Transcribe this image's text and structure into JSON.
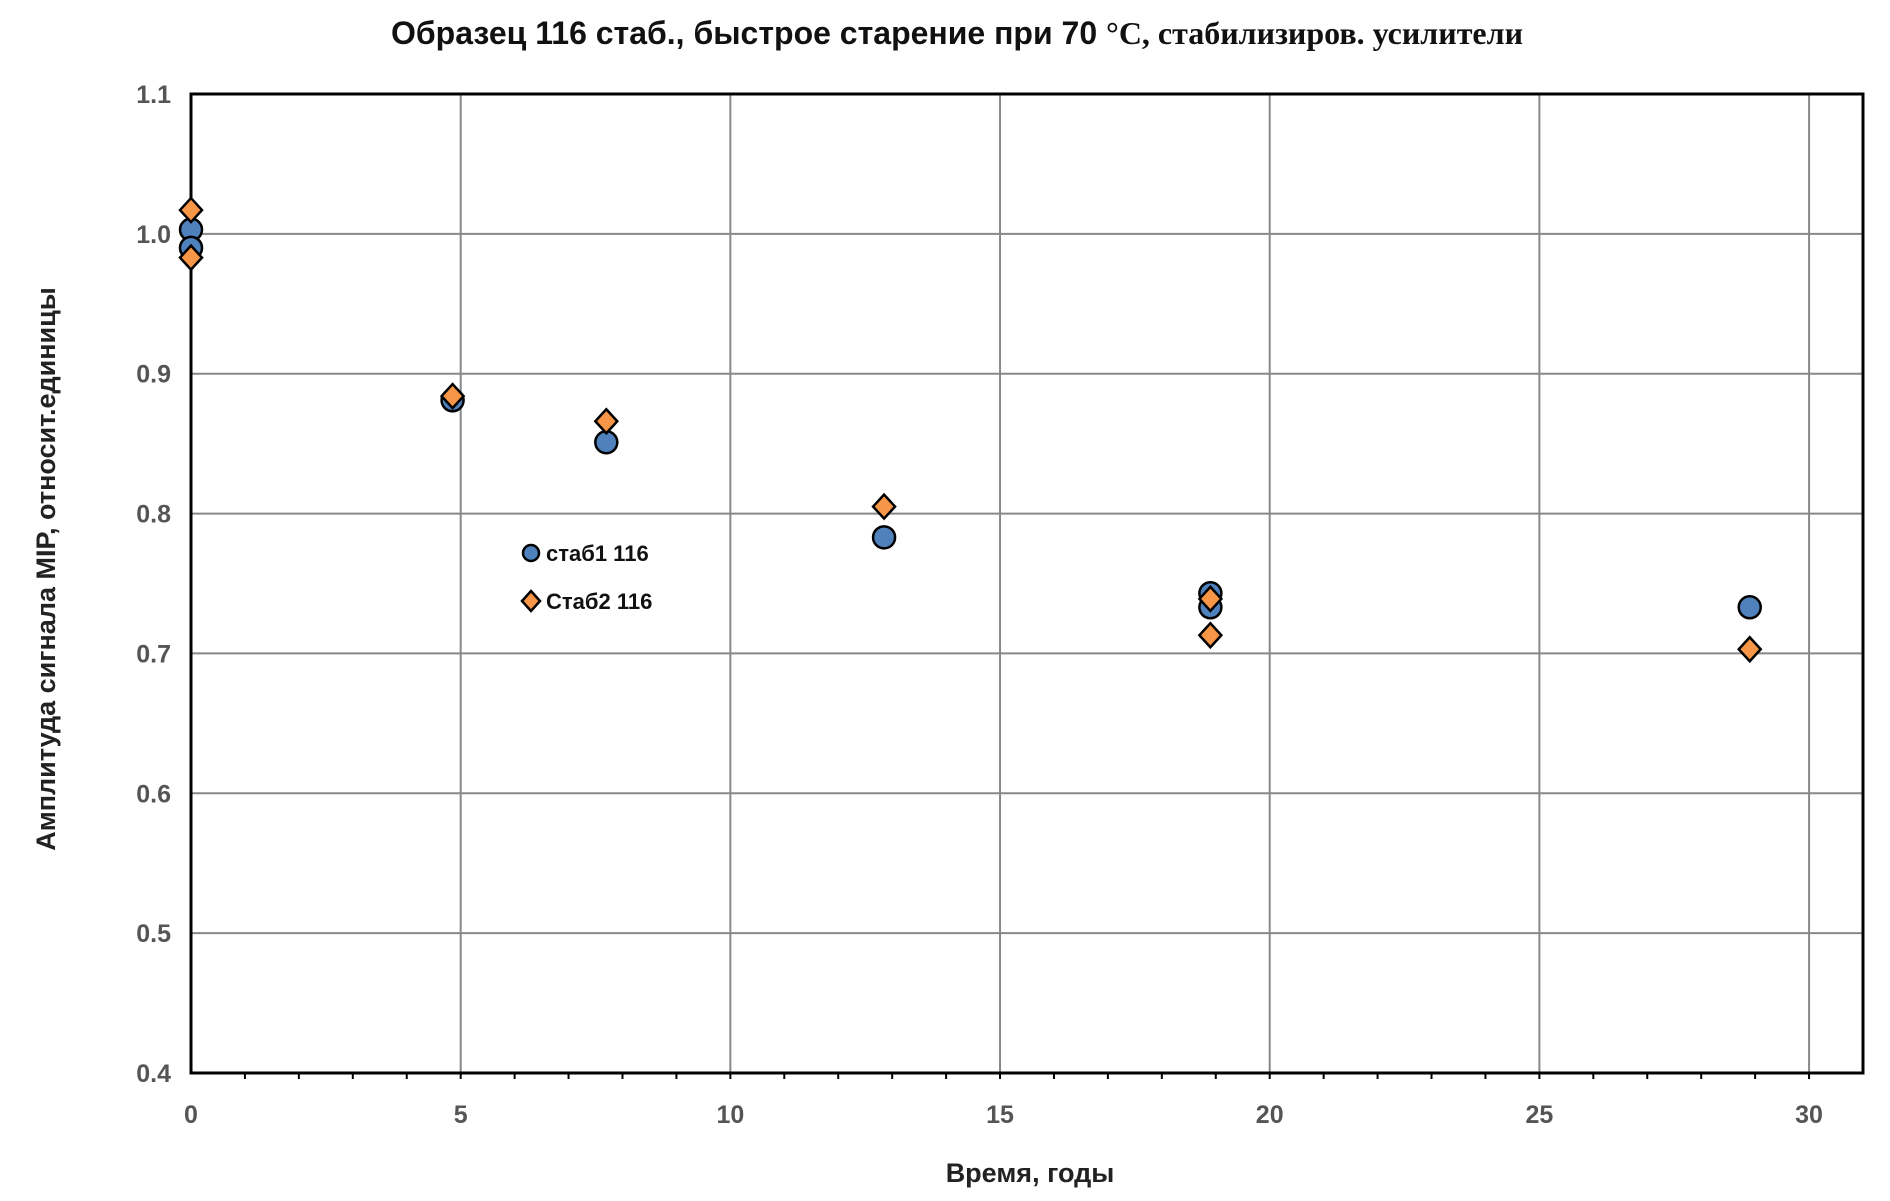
{
  "chart_data": {
    "type": "scatter",
    "title_part1": "Образец 116 стаб., быстрое старение при 70 ",
    "title_part2": "°C,  стабилизиров. усилители",
    "xlabel": "Время, годы",
    "ylabel": "Амплитуда сигнала MIP, относит.единицы",
    "xlim": [
      0,
      31
    ],
    "ylim": [
      0.4,
      1.1
    ],
    "xticks": [
      "0",
      "5",
      "10",
      "15",
      "20",
      "25",
      "30"
    ],
    "xtick_values": [
      0,
      5,
      10,
      15,
      20,
      25,
      30
    ],
    "yticks": [
      "0.4",
      "0.5",
      "0.6",
      "0.7",
      "0.8",
      "0.9",
      "1.0",
      "1.1"
    ],
    "ytick_values": [
      0.4,
      0.5,
      0.6,
      0.7,
      0.8,
      0.9,
      1.0,
      1.1
    ],
    "grid": true,
    "legend_position": "center-left",
    "series": [
      {
        "name": "стаб1 116",
        "marker": "circle",
        "color": "#4f81bd",
        "x": [
          0,
          0,
          4.85,
          7.7,
          12.85,
          18.9,
          18.9,
          28.9
        ],
        "y": [
          1.003,
          0.99,
          0.881,
          0.851,
          0.783,
          0.743,
          0.733,
          0.733
        ]
      },
      {
        "name": "Стаб2 116",
        "marker": "diamond",
        "color": "#f79646",
        "x": [
          0,
          0,
          4.85,
          7.7,
          12.85,
          18.9,
          18.9,
          28.9
        ],
        "y": [
          1.017,
          0.983,
          0.884,
          0.866,
          0.805,
          0.739,
          0.713,
          0.703
        ]
      }
    ]
  }
}
